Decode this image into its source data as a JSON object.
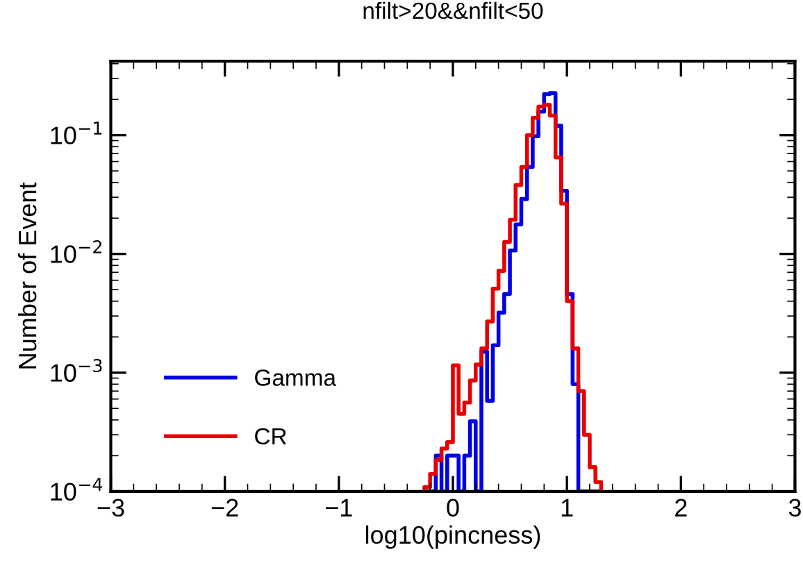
{
  "chart_data": {
    "type": "histogram",
    "title": "nfilt>20&&nfilt<50",
    "xlabel": "log10(pincness)",
    "ylabel": "Number of Event",
    "log": "y",
    "grid": false,
    "legend": "bottom left",
    "xlim": [
      -3,
      3
    ],
    "xticks": [
      {
        "value": -3,
        "label": "−3"
      },
      {
        "value": -2,
        "label": "−2"
      },
      {
        "value": -1,
        "label": "−1"
      },
      0,
      1,
      2,
      3
    ],
    "ylim": [
      0.0001,
      0.42
    ],
    "yticks": [
      {
        "value": 0.0001,
        "label": "10$^{−4}$"
      },
      {
        "value": 0.001,
        "label": "10$^{−3}$"
      },
      {
        "value": 0.01,
        "label": "10$^{−2}$"
      },
      {
        "value": 0.1,
        "label": "10$^{−1}$"
      }
    ],
    "bins": [
      -0.25,
      -0.2,
      -0.15,
      -0.1,
      -0.05,
      0,
      0.05,
      0.1,
      0.15,
      0.2,
      0.25,
      0.3,
      0.35,
      0.4,
      0.45,
      0.5,
      0.55,
      0.6,
      0.65,
      0.7,
      0.75,
      0.8,
      0.85,
      0.9,
      0.95,
      1.0,
      1.05,
      1.1,
      1.15,
      1.2,
      1.25,
      1.3
    ],
    "series": [
      {
        "name": "Gamma",
        "color": "#0000e6",
        "values": [
          0.0001,
          0.0001,
          0.0002,
          0.0001,
          0.0002,
          0.0002,
          0.0001,
          0.0002,
          0.00039,
          0.0001,
          0.0015,
          0.00058,
          0.0017,
          0.0032,
          0.0046,
          0.0107,
          0.0177,
          0.029,
          0.054,
          0.098,
          0.158,
          0.222,
          0.226,
          0.12,
          0.034,
          0.0046,
          0.0008,
          0.0001,
          0.0001,
          0.0001,
          0.0001
        ]
      },
      {
        "name": "CR",
        "color": "#e60000",
        "values": [
          0.000109,
          0.00014,
          0.000184,
          0.00023,
          0.00026,
          0.00115,
          0.00045,
          0.00056,
          0.00086,
          0.00117,
          0.0016,
          0.0027,
          0.0051,
          0.0072,
          0.0126,
          0.0194,
          0.038,
          0.054,
          0.1,
          0.14,
          0.174,
          0.18,
          0.146,
          0.065,
          0.0265,
          0.004,
          0.0016,
          0.0007,
          0.0003,
          0.00016,
          0.00012
        ]
      }
    ]
  }
}
